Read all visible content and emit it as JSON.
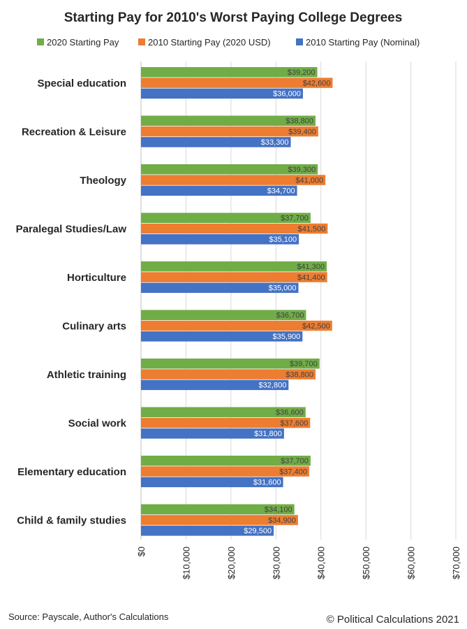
{
  "chart_data": {
    "type": "bar",
    "orientation": "horizontal",
    "title": "Starting Pay for 2010's Worst Paying College Degrees",
    "categories": [
      "Special education",
      "Recreation & Leisure",
      "Theology",
      "Paralegal Studies/Law",
      "Horticulture",
      "Culinary arts",
      "Athletic training",
      "Social work",
      "Elementary education",
      "Child & family studies"
    ],
    "series": [
      {
        "name": "2020 Starting Pay",
        "color": "#70ad47",
        "values": [
          39200,
          38800,
          39300,
          37700,
          41300,
          36700,
          39700,
          36600,
          37700,
          34100
        ],
        "labels": [
          "$39,200",
          "$38,800",
          "$39,300",
          "$37,700",
          "$41,300",
          "$36,700",
          "$39,700",
          "$36,600",
          "$37,700",
          "$34,100"
        ]
      },
      {
        "name": "2010 Starting Pay (2020 USD)",
        "color": "#ed7d31",
        "values": [
          42600,
          39400,
          41000,
          41500,
          41400,
          42500,
          38800,
          37600,
          37400,
          34900
        ],
        "labels": [
          "$42,600",
          "$39,400",
          "$41,000",
          "$41,500",
          "$41,400",
          "$42,500",
          "$38,800",
          "$37,600",
          "$37,400",
          "$34,900"
        ]
      },
      {
        "name": "2010 Starting Pay (Nominal)",
        "color": "#4472c4",
        "values": [
          36000,
          33300,
          34700,
          35100,
          35000,
          35900,
          32800,
          31800,
          31600,
          29500
        ],
        "labels": [
          "$36,000",
          "$33,300",
          "$34,700",
          "$35,100",
          "$35,000",
          "$35,900",
          "$32,800",
          "$31,800",
          "$31,600",
          "$29,500"
        ]
      }
    ],
    "xlim": [
      0,
      70000
    ],
    "xticks": [
      0,
      10000,
      20000,
      30000,
      40000,
      50000,
      60000,
      70000
    ],
    "xtick_labels": [
      "$0",
      "$10,000",
      "$20,000",
      "$30,000",
      "$40,000",
      "$50,000",
      "$60,000",
      "$70,000"
    ],
    "grid": true,
    "legend_position": "top"
  },
  "footer": {
    "source": "Source:  Payscale, Author's Calculations",
    "copyright": "© Political Calculations 2021"
  }
}
